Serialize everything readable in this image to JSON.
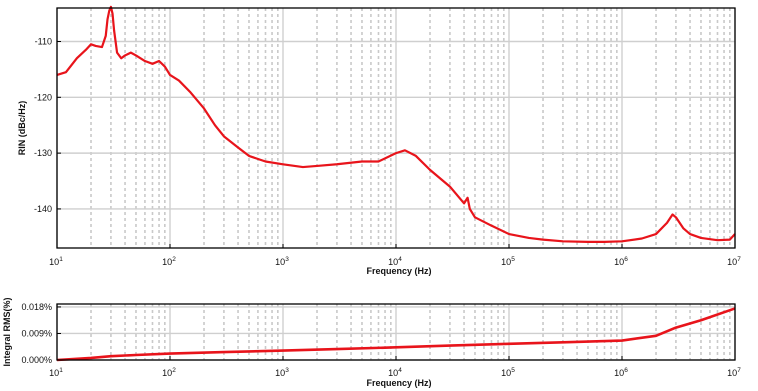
{
  "chart_data": [
    {
      "type": "line",
      "title": "",
      "xlabel": "Frequency (Hz)",
      "ylabel": "RIN (dBc/Hz)",
      "xscale": "log",
      "xlim": [
        10,
        10000000
      ],
      "ylim": [
        -147,
        -104
      ],
      "grid": true,
      "x_ticks": [
        {
          "base": "10",
          "exp": "1"
        },
        {
          "base": "10",
          "exp": "2"
        },
        {
          "base": "10",
          "exp": "3"
        },
        {
          "base": "10",
          "exp": "4"
        },
        {
          "base": "10",
          "exp": "5"
        },
        {
          "base": "10",
          "exp": "6"
        },
        {
          "base": "10",
          "exp": "7"
        }
      ],
      "y_ticks": [
        "-110",
        "-120",
        "-130",
        "-140"
      ],
      "y_tick_values": [
        -110,
        -120,
        -130,
        -140
      ],
      "line_color": "#e8141b",
      "series": [
        {
          "x": [
            10,
            12,
            15,
            18,
            20,
            22,
            25,
            27,
            28,
            29,
            30,
            31,
            32,
            34,
            37,
            40,
            45,
            50,
            60,
            70,
            80,
            90,
            100,
            120,
            150,
            200,
            250,
            300,
            400,
            500,
            700,
            1000,
            1500,
            2000,
            3000,
            5000,
            7000,
            10000,
            12000,
            15000,
            20000,
            30000,
            40000,
            43000,
            45000,
            50000,
            70000,
            100000,
            150000,
            200000,
            300000,
            500000,
            700000,
            1000000,
            1500000,
            2000000,
            2500000,
            2800000,
            3000000,
            3500000,
            4000000,
            5000000,
            7000000,
            9000000,
            10000000
          ],
          "y": [
            -116,
            -115.5,
            -113,
            -111.5,
            -110.5,
            -110.8,
            -111,
            -109,
            -106,
            -104.5,
            -103.8,
            -105,
            -108,
            -112,
            -113,
            -112.5,
            -112,
            -112.5,
            -113.5,
            -114,
            -113.5,
            -114.5,
            -116,
            -117,
            -119,
            -122,
            -125,
            -127,
            -129,
            -130.5,
            -131.5,
            -132,
            -132.5,
            -132.3,
            -132,
            -131.5,
            -131.5,
            -130,
            -129.5,
            -130.5,
            -133,
            -136,
            -139,
            -138,
            -140,
            -141.5,
            -143,
            -144.5,
            -145.2,
            -145.5,
            -145.8,
            -145.9,
            -145.9,
            -145.8,
            -145.3,
            -144.5,
            -142.5,
            -141,
            -141.5,
            -143.5,
            -144.5,
            -145.2,
            -145.6,
            -145.5,
            -144.5
          ]
        }
      ]
    },
    {
      "type": "line",
      "title": "",
      "xlabel": "Frequency (Hz)",
      "ylabel": "Integral RMS(%)",
      "xscale": "log",
      "xlim": [
        10,
        10000000
      ],
      "ylim": [
        0,
        0.019
      ],
      "grid": true,
      "x_ticks": [
        {
          "base": "10",
          "exp": "1"
        },
        {
          "base": "10",
          "exp": "2"
        },
        {
          "base": "10",
          "exp": "3"
        },
        {
          "base": "10",
          "exp": "4"
        },
        {
          "base": "10",
          "exp": "5"
        },
        {
          "base": "10",
          "exp": "6"
        },
        {
          "base": "10",
          "exp": "7"
        }
      ],
      "y_ticks": [
        "0.018%",
        "0.009%",
        "0.000%"
      ],
      "y_tick_values": [
        0.018,
        0.009,
        0.0
      ],
      "line_color": "#e8141b",
      "series": [
        {
          "x": [
            10,
            20,
            30,
            50,
            100,
            300,
            1000,
            3000,
            10000,
            30000,
            100000,
            300000,
            1000000,
            2000000,
            3000000,
            5000000,
            10000000
          ],
          "y": [
            0.0,
            0.0007,
            0.0013,
            0.0017,
            0.0022,
            0.0027,
            0.0032,
            0.0037,
            0.0043,
            0.0049,
            0.0055,
            0.006,
            0.0066,
            0.0082,
            0.011,
            0.0135,
            0.0175
          ]
        }
      ]
    }
  ]
}
